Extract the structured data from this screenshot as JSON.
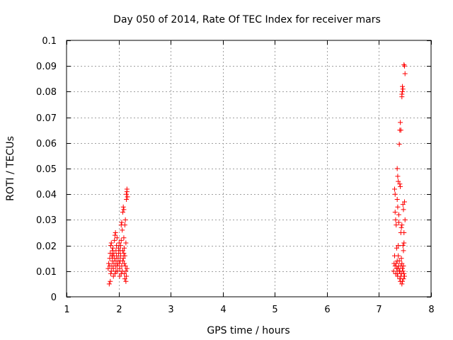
{
  "chart_data": {
    "type": "scatter",
    "title": "Day 050 of 2014, Rate Of TEC Index for receiver mars",
    "xlabel": "GPS time / hours",
    "ylabel": "ROTI / TECUs",
    "xlim": [
      1,
      8
    ],
    "ylim": [
      0,
      0.1
    ],
    "x_ticks": [
      1,
      2,
      3,
      4,
      5,
      6,
      7,
      8
    ],
    "x_tick_labels": [
      "1",
      "2",
      "3",
      "4",
      "5",
      "6",
      "7",
      "8"
    ],
    "y_ticks": [
      0,
      0.01,
      0.02,
      0.03,
      0.04,
      0.05,
      0.06,
      0.07,
      0.08,
      0.09,
      0.1
    ],
    "y_tick_labels": [
      "0",
      "0.01",
      "0.02",
      "0.03",
      "0.04",
      "0.05",
      "0.06",
      "0.07",
      "0.08",
      "0.09",
      "0.1"
    ],
    "grid": true,
    "marker": "+",
    "colors": {
      "points": "#ff0000",
      "grid": "#a0a0a0",
      "axes": "#000000"
    },
    "series": [
      {
        "name": "ROTI",
        "points": [
          [
            1.82,
            0.005
          ],
          [
            1.84,
            0.006
          ],
          [
            1.8,
            0.011
          ],
          [
            1.81,
            0.013
          ],
          [
            1.83,
            0.015
          ],
          [
            1.84,
            0.017
          ],
          [
            1.85,
            0.02
          ],
          [
            1.86,
            0.021
          ],
          [
            1.85,
            0.009
          ],
          [
            1.86,
            0.01
          ],
          [
            1.87,
            0.012
          ],
          [
            1.88,
            0.014
          ],
          [
            1.87,
            0.016
          ],
          [
            1.88,
            0.018
          ],
          [
            1.89,
            0.019
          ],
          [
            1.9,
            0.008
          ],
          [
            1.9,
            0.011
          ],
          [
            1.91,
            0.013
          ],
          [
            1.92,
            0.015
          ],
          [
            1.91,
            0.017
          ],
          [
            1.92,
            0.022
          ],
          [
            1.93,
            0.024
          ],
          [
            1.94,
            0.025
          ],
          [
            1.93,
            0.009
          ],
          [
            1.94,
            0.012
          ],
          [
            1.95,
            0.014
          ],
          [
            1.96,
            0.016
          ],
          [
            1.95,
            0.018
          ],
          [
            1.96,
            0.02
          ],
          [
            1.97,
            0.023
          ],
          [
            1.98,
            0.01
          ],
          [
            1.98,
            0.013
          ],
          [
            1.99,
            0.015
          ],
          [
            2.0,
            0.017
          ],
          [
            2.0,
            0.019
          ],
          [
            2.01,
            0.021
          ],
          [
            2.02,
            0.011
          ],
          [
            2.02,
            0.008
          ],
          [
            2.03,
            0.014
          ],
          [
            2.04,
            0.016
          ],
          [
            2.03,
            0.018
          ],
          [
            2.04,
            0.02
          ],
          [
            2.05,
            0.022
          ],
          [
            2.05,
            0.028
          ],
          [
            2.06,
            0.029
          ],
          [
            2.07,
            0.026
          ],
          [
            2.06,
            0.012
          ],
          [
            2.07,
            0.01
          ],
          [
            2.08,
            0.014
          ],
          [
            2.08,
            0.033
          ],
          [
            2.09,
            0.035
          ],
          [
            2.1,
            0.034
          ],
          [
            2.09,
            0.015
          ],
          [
            2.1,
            0.017
          ],
          [
            2.11,
            0.019
          ],
          [
            2.11,
            0.009
          ],
          [
            2.12,
            0.007
          ],
          [
            2.12,
            0.028
          ],
          [
            2.13,
            0.03
          ],
          [
            2.13,
            0.012
          ],
          [
            2.14,
            0.01
          ],
          [
            2.14,
            0.006
          ],
          [
            2.15,
            0.038
          ],
          [
            2.15,
            0.04
          ],
          [
            2.16,
            0.041
          ],
          [
            2.16,
            0.042
          ],
          [
            2.17,
            0.039
          ],
          [
            2.15,
            0.008
          ],
          [
            2.16,
            0.011
          ],
          [
            2.14,
            0.021
          ],
          [
            2.12,
            0.016
          ],
          [
            2.1,
            0.023
          ],
          [
            2.01,
            0.013
          ],
          [
            1.97,
            0.012
          ],
          [
            1.89,
            0.016
          ],
          [
            1.83,
            0.012
          ],
          [
            1.95,
            0.01
          ],
          [
            2.05,
            0.009
          ],
          [
            2.08,
            0.018
          ],
          [
            2.11,
            0.013
          ],
          [
            7.28,
            0.01
          ],
          [
            7.29,
            0.013
          ],
          [
            7.3,
            0.016
          ],
          [
            7.31,
            0.04
          ],
          [
            7.3,
            0.042
          ],
          [
            7.32,
            0.03
          ],
          [
            7.33,
            0.028
          ],
          [
            7.31,
            0.033
          ],
          [
            7.34,
            0.011
          ],
          [
            7.35,
            0.014
          ],
          [
            7.35,
            0.009
          ],
          [
            7.36,
            0.008
          ],
          [
            7.35,
            0.05
          ],
          [
            7.36,
            0.047
          ],
          [
            7.37,
            0.045
          ],
          [
            7.36,
            0.035
          ],
          [
            7.38,
            0.032
          ],
          [
            7.37,
            0.02
          ],
          [
            7.38,
            0.012
          ],
          [
            7.39,
            0.01
          ],
          [
            7.4,
            0.007
          ],
          [
            7.41,
            0.006
          ],
          [
            7.4,
            0.044
          ],
          [
            7.41,
            0.043
          ],
          [
            7.4,
            0.065
          ],
          [
            7.42,
            0.065
          ],
          [
            7.41,
            0.068
          ],
          [
            7.39,
            0.0595
          ],
          [
            7.42,
            0.025
          ],
          [
            7.43,
            0.027
          ],
          [
            7.44,
            0.028
          ],
          [
            7.43,
            0.015
          ],
          [
            7.44,
            0.013
          ],
          [
            7.45,
            0.011
          ],
          [
            7.44,
            0.079
          ],
          [
            7.45,
            0.08
          ],
          [
            7.46,
            0.081
          ],
          [
            7.45,
            0.082
          ],
          [
            7.44,
            0.078
          ],
          [
            7.46,
            0.036
          ],
          [
            7.47,
            0.034
          ],
          [
            7.46,
            0.02
          ],
          [
            7.47,
            0.018
          ],
          [
            7.48,
            0.021
          ],
          [
            7.47,
            0.012
          ],
          [
            7.48,
            0.009
          ],
          [
            7.49,
            0.008
          ],
          [
            7.48,
            0.0905
          ],
          [
            7.49,
            0.09
          ],
          [
            7.5,
            0.087
          ],
          [
            7.49,
            0.037
          ],
          [
            7.5,
            0.03
          ],
          [
            7.48,
            0.025
          ],
          [
            7.47,
            0.007
          ],
          [
            7.46,
            0.01
          ],
          [
            7.45,
            0.006
          ],
          [
            7.33,
            0.013
          ],
          [
            7.34,
            0.019
          ],
          [
            7.37,
            0.016
          ],
          [
            7.39,
            0.014
          ],
          [
            7.42,
            0.012
          ],
          [
            7.43,
            0.009
          ],
          [
            7.35,
            0.038
          ],
          [
            7.38,
            0.029
          ],
          [
            7.31,
            0.012
          ],
          [
            7.32,
            0.009
          ],
          [
            7.4,
            0.01
          ],
          [
            7.42,
            0.008
          ],
          [
            7.36,
            0.011
          ],
          [
            7.44,
            0.005
          ]
        ]
      }
    ]
  }
}
